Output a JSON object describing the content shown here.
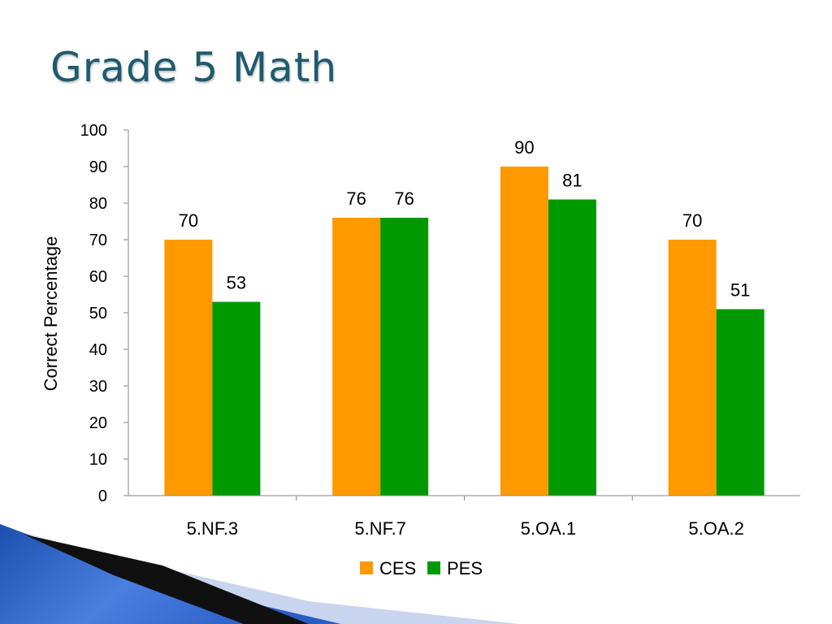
{
  "slide": {
    "title": "Grade 5 Math"
  },
  "chart_data": {
    "type": "bar",
    "title": "",
    "xlabel": "",
    "ylabel": "Correct Percentage",
    "ylim": [
      0,
      100
    ],
    "yticks": [
      0,
      10,
      20,
      30,
      40,
      50,
      60,
      70,
      80,
      90,
      100
    ],
    "categories": [
      "5.NF.3",
      "5.NF.7",
      "5.OA.1",
      "5.OA.2"
    ],
    "series": [
      {
        "name": "CES",
        "color": "#FF9900",
        "values": [
          70,
          76,
          90,
          70
        ]
      },
      {
        "name": "PES",
        "color": "#009900",
        "values": [
          53,
          76,
          81,
          51
        ]
      }
    ],
    "data_labels": true,
    "grid": false,
    "legend": "bottom"
  }
}
